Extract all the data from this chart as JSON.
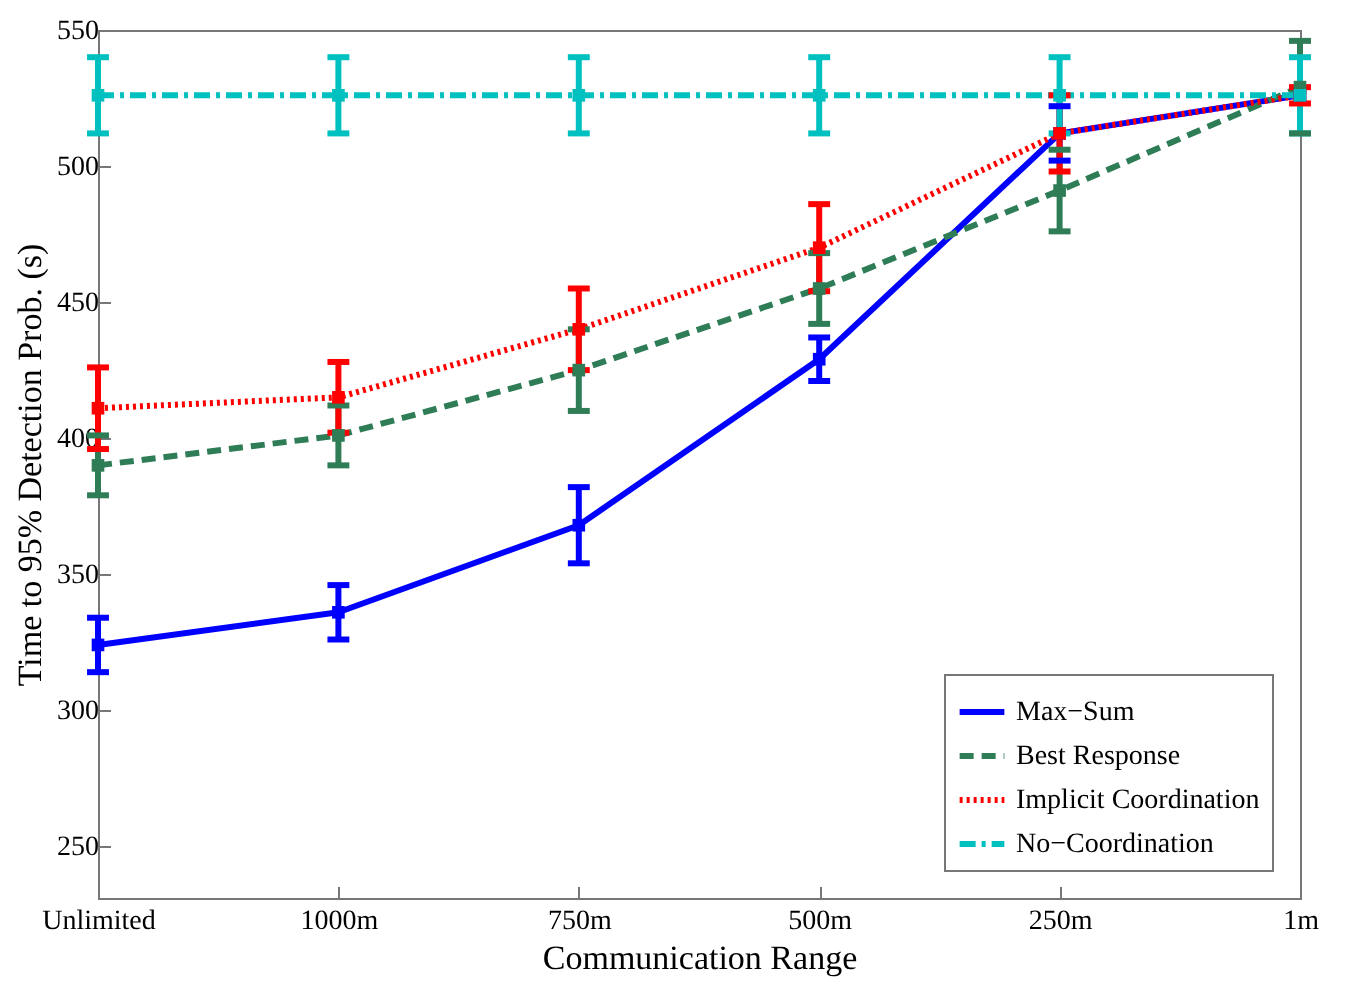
{
  "chart_data": {
    "type": "line",
    "xlabel": "Communication Range",
    "ylabel": "Time to 95% Detection Prob. (s)",
    "categories": [
      "Unlimited",
      "1000m",
      "750m",
      "500m",
      "250m",
      "1m"
    ],
    "ylim": [
      231,
      550
    ],
    "yticks": [
      250,
      300,
      350,
      400,
      450,
      500,
      550
    ],
    "grid": false,
    "legend": "bottom right",
    "marker": "square",
    "series": [
      {
        "name": "Max−Sum",
        "color": "#0000ff",
        "line_style": "solid",
        "values": [
          324,
          336,
          368,
          429,
          512,
          526
        ],
        "errors": [
          10,
          10,
          14,
          8,
          10,
          null
        ]
      },
      {
        "name": "Best Response",
        "color": "#2e7d57",
        "line_style": "dashed",
        "values": [
          390,
          401,
          425,
          455,
          491,
          529
        ],
        "errors": [
          11,
          11,
          15,
          13,
          15,
          17
        ]
      },
      {
        "name": "Implicit Coordination",
        "color": "#ff0000",
        "line_style": "dotted",
        "values": [
          411,
          415,
          440,
          470,
          512,
          526
        ],
        "errors": [
          15,
          13,
          15,
          16,
          14,
          3
        ]
      },
      {
        "name": "No−Coordination",
        "color": "#00c0c0",
        "line_style": "dashdot",
        "values": [
          526,
          526,
          526,
          526,
          526,
          526
        ],
        "errors": [
          14,
          14,
          14,
          14,
          14,
          14
        ]
      }
    ]
  }
}
